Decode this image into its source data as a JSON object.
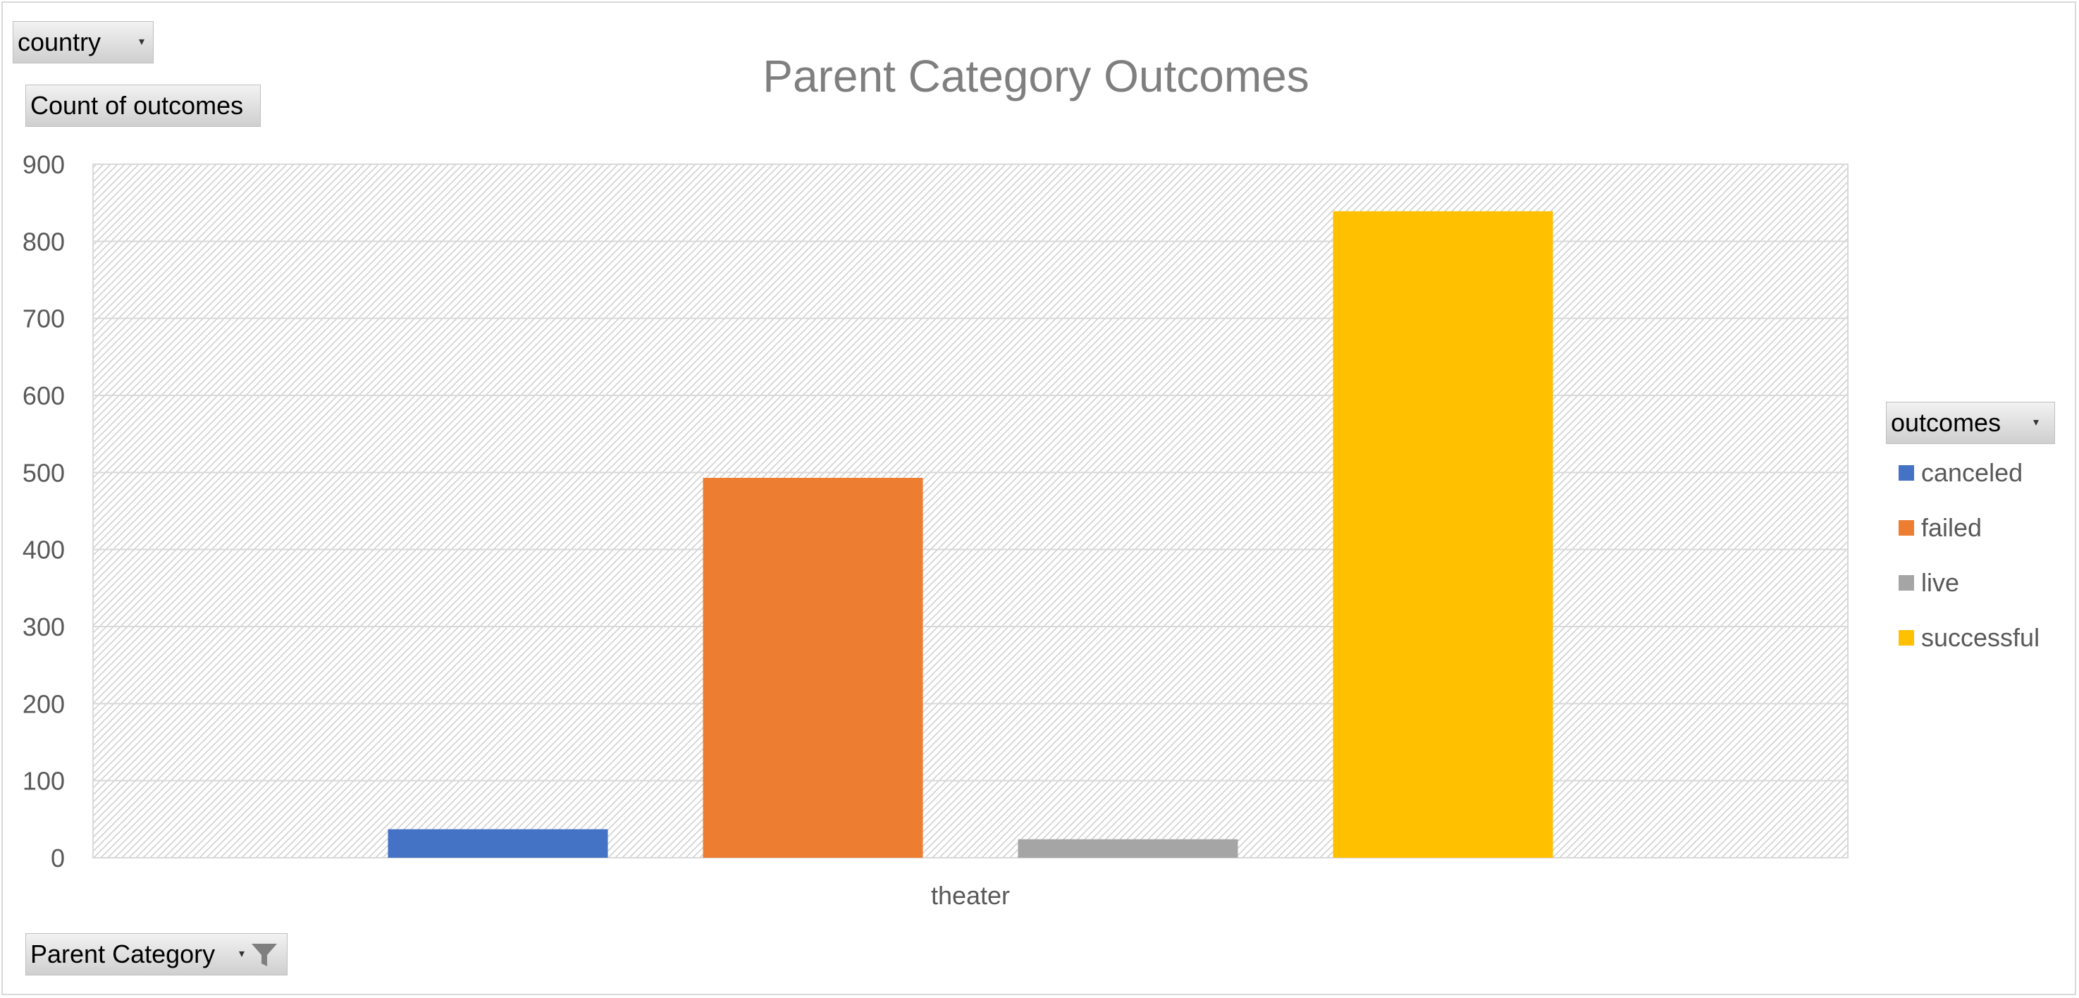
{
  "buttons": {
    "filter_field": "country",
    "value_field": "Count of outcomes",
    "legend_field": "outcomes",
    "axis_field": "Parent Category"
  },
  "colors": {
    "canceled": "#4472c4",
    "failed": "#ed7d31",
    "live": "#a5a5a5",
    "successful": "#ffc000",
    "gridline": "#d9d9d9",
    "axis_text": "#595959",
    "title_text": "#7f7f7f"
  },
  "chart_data": {
    "type": "bar",
    "title": "Parent Category Outcomes",
    "xlabel": "",
    "ylabel": "",
    "categories": [
      "theater"
    ],
    "series": [
      {
        "name": "canceled",
        "values": [
          37
        ]
      },
      {
        "name": "failed",
        "values": [
          493
        ]
      },
      {
        "name": "live",
        "values": [
          24
        ]
      },
      {
        "name": "successful",
        "values": [
          839
        ]
      }
    ],
    "ylim": [
      0,
      900
    ],
    "yticks": [
      0,
      100,
      200,
      300,
      400,
      500,
      600,
      700,
      800,
      900
    ],
    "grid": true,
    "legend_position": "right"
  }
}
